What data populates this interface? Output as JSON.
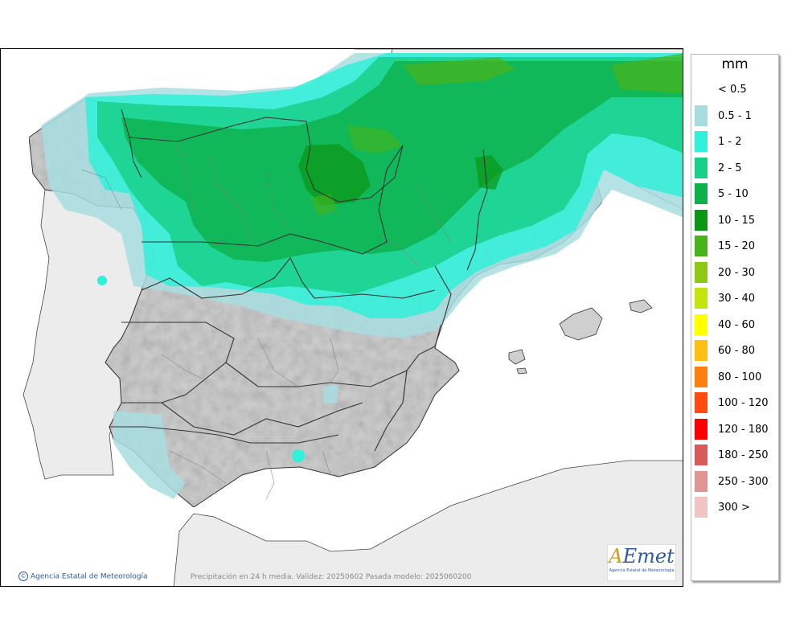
{
  "map": {
    "credit": "Agencia Estatal de Meteorología",
    "caption": "Precipitación en 24 h media. Validez: 20250602 Pasada modelo: 2025060200",
    "logo_text": "AEmet",
    "logo_subtitle": "Agencia Estatal de Meteorología",
    "colors": {
      "sea": "#ffffff",
      "land_spain": "#cfcfcf",
      "land_other": "#ececec"
    }
  },
  "legend": {
    "title": "mm",
    "items": [
      {
        "label": "< 0.5",
        "color": ""
      },
      {
        "label": "0.5 - 1",
        "color": "#a8dde0"
      },
      {
        "label": "1 - 2",
        "color": "#2ff0d8"
      },
      {
        "label": "2 - 5",
        "color": "#18d08a"
      },
      {
        "label": "5 - 10",
        "color": "#0eb04a"
      },
      {
        "label": "10 - 15",
        "color": "#0b9614"
      },
      {
        "label": "15 - 20",
        "color": "#48b41a"
      },
      {
        "label": "20 - 30",
        "color": "#8cc814"
      },
      {
        "label": "30 - 40",
        "color": "#c4e410"
      },
      {
        "label": "40 - 60",
        "color": "#ffff00"
      },
      {
        "label": "60 - 80",
        "color": "#ffbe14"
      },
      {
        "label": "80 - 100",
        "color": "#ff7e10"
      },
      {
        "label": "100 - 120",
        "color": "#ff4a10"
      },
      {
        "label": "120 - 180",
        "color": "#ff0000"
      },
      {
        "label": "180 - 250",
        "color": "#d85a5a"
      },
      {
        "label": "250 - 300",
        "color": "#e09494"
      },
      {
        "label": "300 >",
        "color": "#f0c4c4"
      }
    ]
  }
}
